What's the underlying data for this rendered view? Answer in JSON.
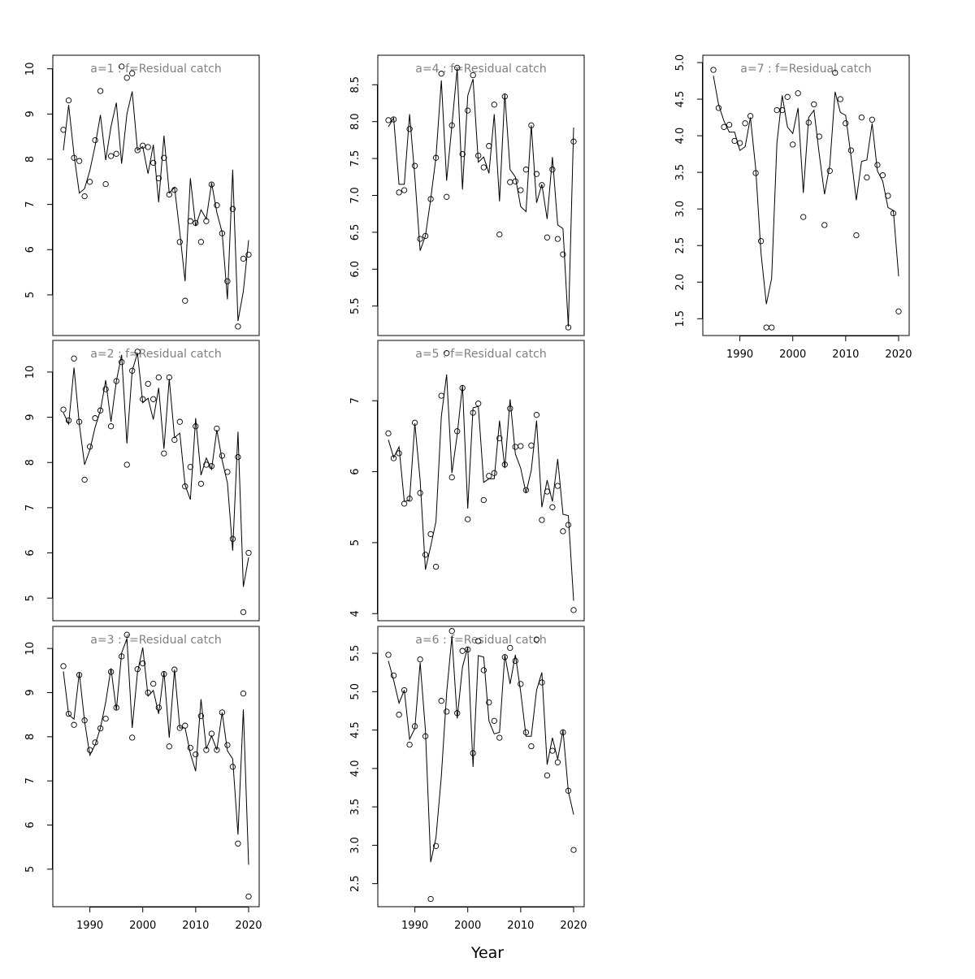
{
  "chart_data": {
    "type": "scatter",
    "xlabel": "Year",
    "xlim": [
      1983,
      2022
    ],
    "x_ticks": [
      1990,
      2000,
      2010,
      2020
    ],
    "panels": [
      {
        "title": "a=1  :  f=Residual catch",
        "ylim": [
          4.1,
          10.3
        ],
        "y_ticks": [
          5,
          6,
          7,
          8,
          9,
          10
        ],
        "y_tick_labels": [
          "5",
          "6",
          "7",
          "8",
          "9",
          "10"
        ],
        "show_x_axis": false,
        "x": [
          1985,
          1986,
          1987,
          1988,
          1989,
          1990,
          1991,
          1992,
          1993,
          1994,
          1995,
          1996,
          1997,
          1998,
          1999,
          2000,
          2001,
          2002,
          2003,
          2004,
          2005,
          2006,
          2007,
          2008,
          2009,
          2010,
          2011,
          2012,
          2013,
          2014,
          2015,
          2016,
          2017,
          2018,
          2019,
          2020
        ],
        "observed": [
          8.65,
          9.3,
          8.03,
          7.96,
          7.18,
          7.5,
          8.42,
          9.51,
          7.45,
          8.07,
          8.12,
          10.05,
          9.8,
          9.9,
          8.2,
          8.3,
          8.27,
          7.92,
          7.58,
          8.03,
          7.22,
          7.32,
          6.17,
          4.87,
          6.63,
          6.59,
          6.17,
          6.63,
          7.44,
          6.98,
          6.36,
          5.3,
          6.9,
          4.3,
          5.8,
          5.89
        ],
        "fitted": [
          8.2,
          9.2,
          8.1,
          7.25,
          7.35,
          7.75,
          8.3,
          8.98,
          7.98,
          8.72,
          9.25,
          7.9,
          9.0,
          9.5,
          8.2,
          8.28,
          7.68,
          8.32,
          7.05,
          8.52,
          7.25,
          7.38,
          6.38,
          5.3,
          7.58,
          6.52,
          6.88,
          6.68,
          7.48,
          6.82,
          6.38,
          4.9,
          7.77,
          4.42,
          5.08,
          6.21
        ]
      },
      {
        "title": "a=2  :  f=Residual catch",
        "ylim": [
          4.5,
          10.7
        ],
        "y_ticks": [
          5,
          6,
          7,
          8,
          9,
          10
        ],
        "y_tick_labels": [
          "5",
          "6",
          "7",
          "8",
          "9",
          "10"
        ],
        "show_x_axis": false,
        "x": [
          1985,
          1986,
          1987,
          1988,
          1989,
          1990,
          1991,
          1992,
          1993,
          1994,
          1995,
          1996,
          1997,
          1998,
          1999,
          2000,
          2001,
          2002,
          2003,
          2004,
          2005,
          2006,
          2007,
          2008,
          2009,
          2010,
          2011,
          2012,
          2013,
          2014,
          2015,
          2016,
          2017,
          2018,
          2019,
          2020
        ],
        "observed": [
          9.17,
          8.93,
          10.3,
          8.9,
          7.62,
          8.35,
          8.98,
          9.15,
          9.62,
          8.8,
          9.8,
          10.22,
          7.95,
          10.03,
          10.45,
          9.4,
          9.74,
          9.4,
          9.88,
          8.2,
          9.88,
          8.5,
          8.9,
          7.47,
          7.9,
          8.8,
          7.53,
          7.95,
          7.92,
          8.75,
          8.15,
          7.79,
          6.31,
          8.12,
          4.69,
          6.0
        ],
        "fitted": [
          9.1,
          8.85,
          10.1,
          8.85,
          7.95,
          8.28,
          8.78,
          9.15,
          9.82,
          8.9,
          9.8,
          10.38,
          8.42,
          10.03,
          10.42,
          9.32,
          9.42,
          8.95,
          9.65,
          8.3,
          9.85,
          8.55,
          8.65,
          7.5,
          7.18,
          8.98,
          7.72,
          8.1,
          7.85,
          8.72,
          8.05,
          7.55,
          6.05,
          8.68,
          5.25,
          5.9
        ]
      },
      {
        "title": "a=3  :  f=Residual catch",
        "ylim": [
          4.15,
          10.5
        ],
        "y_ticks": [
          5,
          6,
          7,
          8,
          9,
          10
        ],
        "y_tick_labels": [
          "5",
          "6",
          "7",
          "8",
          "9",
          "10"
        ],
        "show_x_axis": true,
        "x": [
          1985,
          1986,
          1987,
          1988,
          1989,
          1990,
          1991,
          1992,
          1993,
          1994,
          1995,
          1996,
          1997,
          1998,
          1999,
          2000,
          2001,
          2002,
          2003,
          2004,
          2005,
          2006,
          2007,
          2008,
          2009,
          2010,
          2011,
          2012,
          2013,
          2014,
          2015,
          2016,
          2017,
          2018,
          2019,
          2020
        ],
        "observed": [
          9.6,
          8.52,
          8.27,
          9.4,
          8.37,
          7.7,
          7.87,
          8.19,
          8.41,
          9.47,
          8.66,
          9.82,
          10.31,
          7.98,
          9.53,
          9.66,
          9.0,
          9.2,
          8.66,
          9.42,
          7.78,
          9.52,
          8.2,
          8.25,
          7.75,
          7.6,
          8.47,
          7.7,
          8.07,
          7.7,
          8.55,
          7.81,
          7.32,
          5.58,
          8.98,
          4.38
        ],
        "fitted": [
          9.48,
          8.5,
          8.4,
          9.45,
          8.35,
          7.58,
          7.82,
          8.2,
          8.78,
          9.55,
          8.6,
          9.9,
          10.22,
          8.2,
          9.45,
          10.02,
          8.92,
          9.05,
          8.52,
          9.48,
          7.98,
          9.52,
          8.2,
          8.2,
          7.62,
          7.22,
          8.85,
          7.72,
          8.02,
          7.7,
          8.55,
          7.68,
          7.5,
          5.78,
          8.62,
          5.1
        ]
      },
      {
        "title": "a=4  :  f=Residual catch",
        "ylim": [
          5.1,
          8.9
        ],
        "y_ticks": [
          5.5,
          6.0,
          6.5,
          7.0,
          7.5,
          8.0,
          8.5
        ],
        "y_tick_labels": [
          "5.5",
          "6.0",
          "6.5",
          "7.0",
          "7.5",
          "8.0",
          "8.5"
        ],
        "show_x_axis": false,
        "x": [
          1985,
          1986,
          1987,
          1988,
          1989,
          1990,
          1991,
          1992,
          1993,
          1994,
          1995,
          1996,
          1997,
          1998,
          1999,
          2000,
          2001,
          2002,
          2003,
          2004,
          2005,
          2006,
          2007,
          2008,
          2009,
          2010,
          2011,
          2012,
          2013,
          2014,
          2015,
          2016,
          2017,
          2018,
          2019,
          2020
        ],
        "observed": [
          8.02,
          8.03,
          7.04,
          7.07,
          7.9,
          7.4,
          6.41,
          6.45,
          6.95,
          7.51,
          8.65,
          6.98,
          7.95,
          8.73,
          7.56,
          8.15,
          8.63,
          7.54,
          7.38,
          7.67,
          8.23,
          6.47,
          8.34,
          7.18,
          7.19,
          7.07,
          7.35,
          7.95,
          7.29,
          7.14,
          6.43,
          7.35,
          6.41,
          6.2,
          5.21,
          7.73
        ],
        "fitted": [
          7.93,
          8.05,
          7.15,
          7.15,
          8.1,
          7.25,
          6.25,
          6.45,
          6.95,
          7.52,
          8.56,
          7.2,
          7.95,
          8.72,
          7.08,
          8.35,
          8.58,
          7.45,
          7.52,
          7.3,
          8.1,
          6.92,
          8.38,
          7.35,
          7.25,
          6.85,
          6.78,
          7.95,
          6.9,
          7.15,
          6.68,
          7.52,
          6.6,
          6.55,
          5.22,
          7.92
        ]
      },
      {
        "title": "a=5  :  f=Residual catch",
        "ylim": [
          3.9,
          7.85
        ],
        "y_ticks": [
          4,
          5,
          6,
          7
        ],
        "y_tick_labels": [
          "4",
          "5",
          "6",
          "7"
        ],
        "show_x_axis": false,
        "x": [
          1985,
          1986,
          1987,
          1988,
          1989,
          1990,
          1991,
          1992,
          1993,
          1994,
          1995,
          1996,
          1997,
          1998,
          1999,
          2000,
          2001,
          2002,
          2003,
          2004,
          2005,
          2006,
          2007,
          2008,
          2009,
          2010,
          2011,
          2012,
          2013,
          2014,
          2015,
          2016,
          2017,
          2018,
          2019,
          2020
        ],
        "observed": [
          6.54,
          6.19,
          6.26,
          5.55,
          5.62,
          6.69,
          5.7,
          4.83,
          5.12,
          4.66,
          7.07,
          7.67,
          5.92,
          6.57,
          7.18,
          5.33,
          6.83,
          6.96,
          5.6,
          5.94,
          5.98,
          6.47,
          6.1,
          6.89,
          6.35,
          6.36,
          5.74,
          6.37,
          6.8,
          5.32,
          5.72,
          5.5,
          5.8,
          5.16,
          5.25,
          4.05
        ],
        "fitted": [
          6.45,
          6.2,
          6.35,
          5.58,
          5.6,
          6.68,
          5.88,
          4.62,
          4.95,
          5.3,
          6.78,
          7.37,
          5.98,
          6.52,
          7.22,
          5.48,
          6.9,
          6.92,
          5.85,
          5.9,
          5.9,
          6.72,
          6.05,
          7.02,
          6.25,
          6.05,
          5.7,
          6.02,
          6.72,
          5.5,
          5.88,
          5.58,
          6.18,
          5.4,
          5.38,
          4.18
        ]
      },
      {
        "title": "a=6  :  f=Residual catch",
        "ylim": [
          2.2,
          5.85
        ],
        "y_ticks": [
          2.5,
          3.0,
          3.5,
          4.0,
          4.5,
          5.0,
          5.5
        ],
        "y_tick_labels": [
          "2.5",
          "3.0",
          "3.5",
          "4.0",
          "4.5",
          "5.0",
          "5.5"
        ],
        "show_x_axis": true,
        "x": [
          1985,
          1986,
          1987,
          1988,
          1989,
          1990,
          1991,
          1992,
          1993,
          1994,
          1995,
          1996,
          1997,
          1998,
          1999,
          2000,
          2001,
          2002,
          2003,
          2004,
          2005,
          2006,
          2007,
          2008,
          2009,
          2010,
          2011,
          2012,
          2013,
          2014,
          2015,
          2016,
          2017,
          2018,
          2019,
          2020
        ],
        "observed": [
          5.48,
          5.21,
          4.7,
          5.02,
          4.31,
          4.55,
          5.42,
          4.42,
          2.3,
          2.99,
          4.88,
          4.74,
          5.79,
          4.72,
          5.53,
          5.55,
          4.2,
          5.66,
          5.28,
          4.86,
          4.62,
          4.4,
          5.45,
          5.57,
          5.4,
          5.1,
          4.47,
          4.29,
          5.68,
          5.12,
          3.91,
          4.23,
          4.08,
          4.47,
          3.71,
          2.94
        ],
        "fitted": [
          5.4,
          5.15,
          4.85,
          5.02,
          4.38,
          4.52,
          5.38,
          4.5,
          2.78,
          3.1,
          3.9,
          4.98,
          5.72,
          4.65,
          5.32,
          5.58,
          4.02,
          5.47,
          5.45,
          4.62,
          4.45,
          4.47,
          5.48,
          5.1,
          5.48,
          5.0,
          4.42,
          4.42,
          5.02,
          5.25,
          4.05,
          4.4,
          4.12,
          4.5,
          3.7,
          3.4
        ]
      },
      {
        "title": "a=7  :  f=Residual catch",
        "ylim": [
          1.27,
          5.1
        ],
        "y_ticks": [
          1.5,
          2.0,
          2.5,
          3.0,
          3.5,
          4.0,
          4.5,
          5.0
        ],
        "y_tick_labels": [
          "1.5",
          "2.0",
          "2.5",
          "3.0",
          "3.5",
          "4.0",
          "4.5",
          "5.0"
        ],
        "show_x_axis": true,
        "x": [
          1985,
          1986,
          1987,
          1988,
          1989,
          1990,
          1991,
          1992,
          1993,
          1994,
          1995,
          1996,
          1997,
          1998,
          1999,
          2000,
          2001,
          2002,
          2003,
          2004,
          2005,
          2006,
          2007,
          2008,
          2009,
          2010,
          2011,
          2012,
          2013,
          2014,
          2015,
          2016,
          2017,
          2018,
          2019,
          2020
        ],
        "observed": [
          4.9,
          4.38,
          4.12,
          4.15,
          3.93,
          3.9,
          4.17,
          4.27,
          3.49,
          2.56,
          1.38,
          1.38,
          4.35,
          4.35,
          4.53,
          3.88,
          4.58,
          2.89,
          4.18,
          4.43,
          3.99,
          2.78,
          3.52,
          4.86,
          4.5,
          4.17,
          3.8,
          2.64,
          4.25,
          3.43,
          4.22,
          3.6,
          3.46,
          3.18,
          2.94,
          1.6
        ],
        "fitted": [
          4.82,
          4.42,
          4.2,
          4.05,
          4.05,
          3.8,
          3.85,
          4.25,
          3.55,
          2.4,
          1.7,
          2.05,
          3.9,
          4.55,
          4.12,
          4.03,
          4.38,
          3.22,
          4.25,
          4.35,
          3.75,
          3.2,
          3.6,
          4.6,
          4.32,
          4.28,
          3.72,
          3.12,
          3.65,
          3.67,
          4.17,
          3.52,
          3.38,
          3.02,
          2.98,
          2.08
        ]
      }
    ]
  }
}
